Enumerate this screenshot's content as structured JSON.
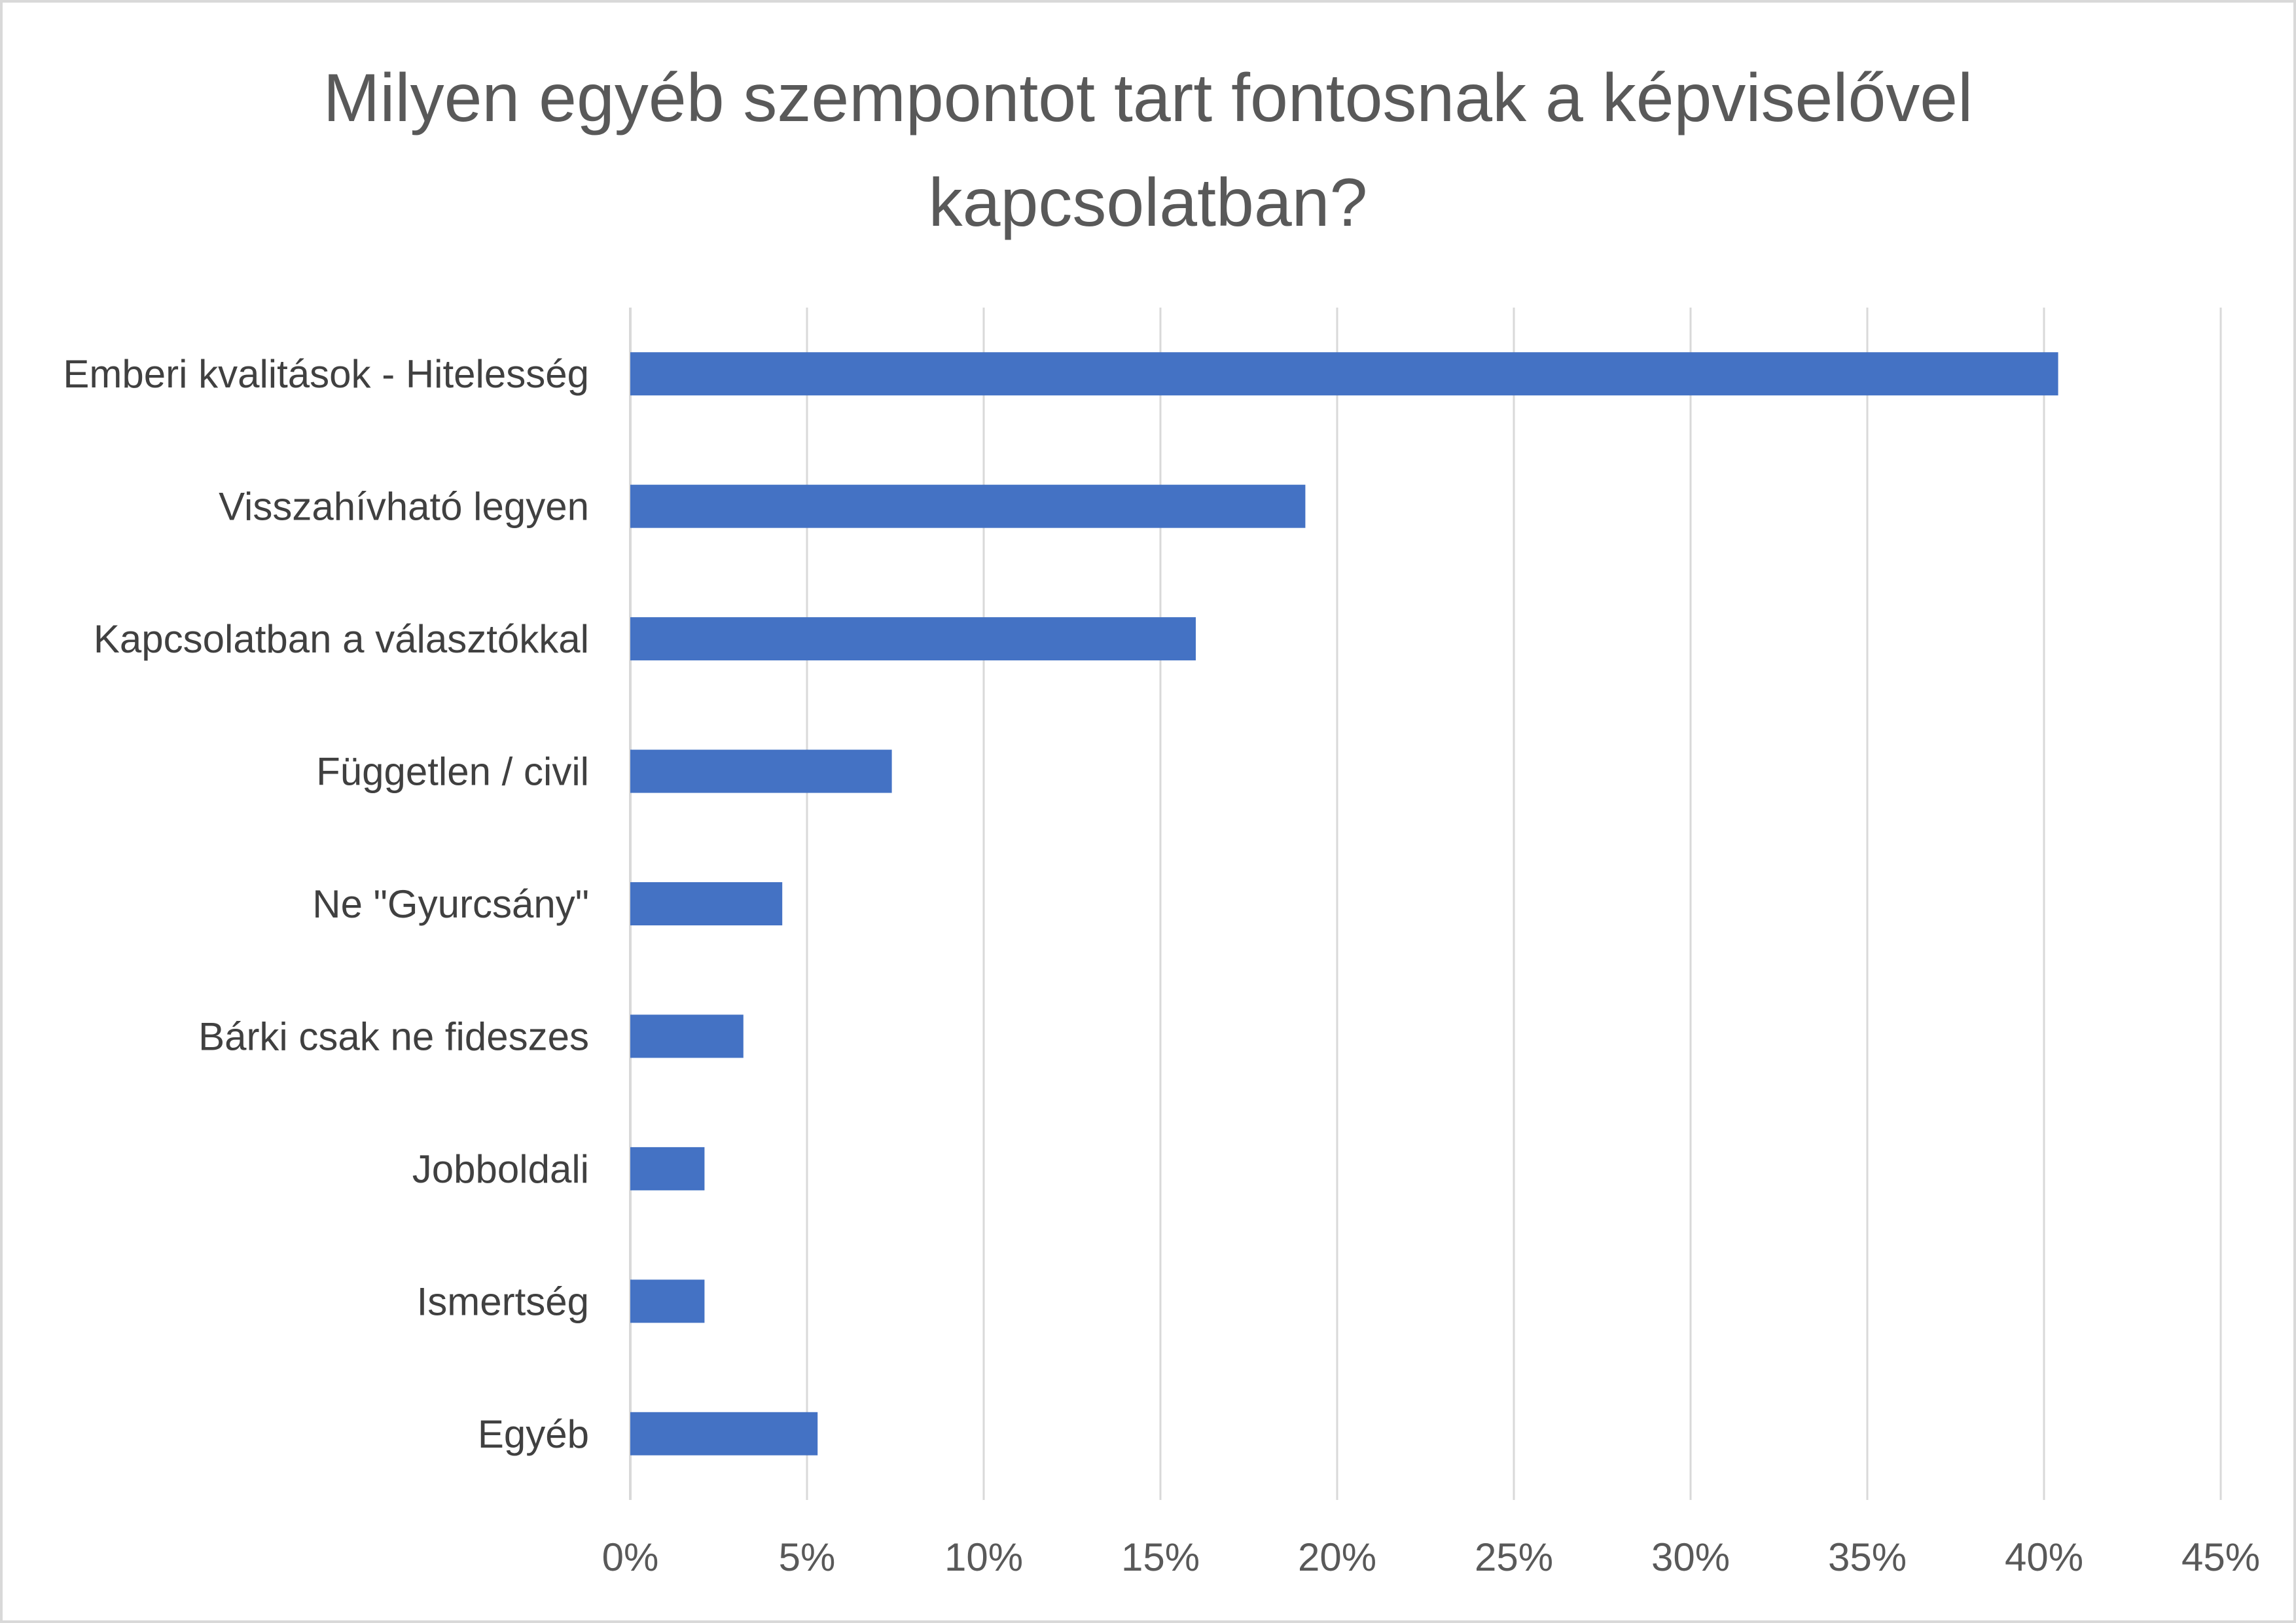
{
  "chart_data": {
    "type": "bar",
    "orientation": "horizontal",
    "title": "Milyen egyéb szempontot tart fontosnak a képviselővel kapcsolatban?",
    "categories": [
      "Emberi kvalitások - Hitelesség",
      "Visszahívható legyen",
      "Kapcsolatban a választókkal",
      "Független / civil",
      "Ne \"Gyurcsány\"",
      "Bárki csak ne fideszes",
      "Jobboldali",
      "Ismertség",
      "Egyéb"
    ],
    "values": [
      0.404,
      0.191,
      0.16,
      0.074,
      0.043,
      0.032,
      0.021,
      0.021,
      0.053
    ],
    "xlim": [
      0,
      0.45
    ],
    "xticks": [
      0,
      0.05,
      0.1,
      0.15,
      0.2,
      0.25,
      0.3,
      0.35,
      0.4,
      0.45
    ],
    "xtick_labels": [
      "0%",
      "5%",
      "10%",
      "15%",
      "20%",
      "25%",
      "30%",
      "35%",
      "40%",
      "45%"
    ],
    "xlabel": "",
    "ylabel": "",
    "grid": "vertical",
    "legend": "none",
    "bar_color": "#4472C4",
    "grid_color": "#d9d9d9"
  }
}
